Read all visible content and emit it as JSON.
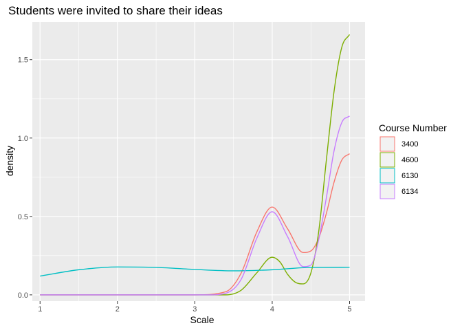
{
  "chart_data": {
    "type": "line",
    "title": "Students were invited to share their ideas",
    "xlabel": "Scale",
    "ylabel": "density",
    "xlim": [
      0.9,
      5.2
    ],
    "ylim": [
      -0.04,
      1.74
    ],
    "x_ticks": [
      1,
      2,
      3,
      4,
      5
    ],
    "y_ticks": [
      0.0,
      0.5,
      1.0,
      1.5
    ],
    "x_tick_labels": [
      "1",
      "2",
      "3",
      "4",
      "5"
    ],
    "y_tick_labels": [
      "0.0",
      "0.5",
      "1.0",
      "1.5"
    ],
    "grid": true,
    "legend": {
      "title": "Course Number",
      "placement": "right"
    },
    "series": [
      {
        "name": "3400",
        "color": "#F8766D",
        "x": [
          1.0,
          3.0,
          3.4,
          3.6,
          3.8,
          4.0,
          4.2,
          4.4,
          4.5,
          4.6,
          4.7,
          4.8,
          4.9,
          5.0
        ],
        "y": [
          0.0,
          0.0,
          0.02,
          0.14,
          0.4,
          0.56,
          0.42,
          0.27,
          0.28,
          0.36,
          0.52,
          0.72,
          0.86,
          0.9
        ]
      },
      {
        "name": "4600",
        "color": "#7CAE00",
        "x": [
          1.0,
          3.4,
          3.6,
          3.8,
          4.0,
          4.1,
          4.2,
          4.3,
          4.4,
          4.5,
          4.6,
          4.7,
          4.8,
          4.9,
          5.0
        ],
        "y": [
          0.0,
          0.0,
          0.03,
          0.14,
          0.24,
          0.21,
          0.13,
          0.08,
          0.07,
          0.14,
          0.4,
          0.86,
          1.3,
          1.58,
          1.66
        ]
      },
      {
        "name": "6130",
        "color": "#00BFC4",
        "x": [
          1.0,
          1.5,
          2.0,
          2.5,
          3.0,
          3.5,
          4.0,
          4.5,
          5.0
        ],
        "y": [
          0.12,
          0.16,
          0.178,
          0.175,
          0.162,
          0.153,
          0.16,
          0.175,
          0.176
        ]
      },
      {
        "name": "6134",
        "color": "#C77CFF",
        "x": [
          1.0,
          3.2,
          3.4,
          3.6,
          3.8,
          4.0,
          4.2,
          4.4,
          4.5,
          4.6,
          4.7,
          4.8,
          4.9,
          5.0
        ],
        "y": [
          0.0,
          0.0,
          0.01,
          0.1,
          0.36,
          0.53,
          0.37,
          0.18,
          0.19,
          0.35,
          0.62,
          0.92,
          1.1,
          1.14
        ]
      }
    ]
  }
}
